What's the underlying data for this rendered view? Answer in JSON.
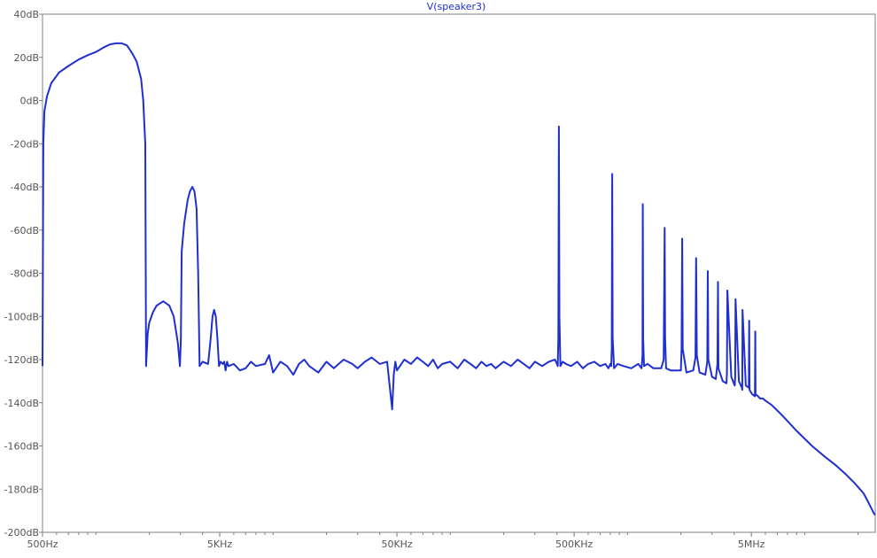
{
  "chart_data": {
    "type": "line",
    "title": "V(speaker3)",
    "xlabel": "",
    "ylabel": "",
    "x_scale": "log",
    "xlim": [
      500,
      25000000
    ],
    "ylim": [
      -200,
      40
    ],
    "grid": false,
    "x_ticks": [
      {
        "value": 500,
        "label": "500Hz"
      },
      {
        "value": 5000,
        "label": "5KHz"
      },
      {
        "value": 50000,
        "label": "50KHz"
      },
      {
        "value": 500000,
        "label": "500KHz"
      },
      {
        "value": 5000000,
        "label": "5MHz"
      }
    ],
    "y_ticks": [
      {
        "value": 40,
        "label": "40dB"
      },
      {
        "value": 20,
        "label": "20dB"
      },
      {
        "value": 0,
        "label": "0dB"
      },
      {
        "value": -20,
        "label": "-20dB"
      },
      {
        "value": -40,
        "label": "-40dB"
      },
      {
        "value": -60,
        "label": "-60dB"
      },
      {
        "value": -80,
        "label": "-80dB"
      },
      {
        "value": -100,
        "label": "-100dB"
      },
      {
        "value": -120,
        "label": "-120dB"
      },
      {
        "value": -140,
        "label": "-140dB"
      },
      {
        "value": -160,
        "label": "-160dB"
      },
      {
        "value": -180,
        "label": "-180dB"
      },
      {
        "value": -200,
        "label": "-200dB"
      }
    ],
    "line_color": "#1f2fd0",
    "series": [
      {
        "values_note_free": true,
        "x": [
          500,
          505,
          512,
          530,
          560,
          620,
          700,
          800,
          900,
          1000,
          1050,
          1100,
          1200,
          1300,
          1400,
          1500,
          1600,
          1700,
          1800,
          1850,
          1900,
          1920,
          1960,
          2000,
          2100,
          2200,
          2400,
          2600,
          2750,
          2900,
          2980,
          3020,
          3050,
          3150,
          3300,
          3400,
          3500,
          3600,
          3700,
          3780,
          3850,
          4000,
          4300,
          4450,
          4550,
          4650,
          4750,
          4850,
          4950,
          5050,
          5200,
          5300,
          5400,
          5500,
          5600,
          6000,
          6500,
          7000,
          7500,
          8000,
          9000,
          9500,
          10000,
          11000,
          12000,
          13000,
          14000,
          15000,
          16000,
          18000,
          20000,
          22000,
          25000,
          28000,
          30000,
          33000,
          36000,
          40000,
          44000,
          47000,
          48000,
          49000,
          50000,
          55000,
          60000,
          65000,
          70000,
          75000,
          80000,
          85000,
          90000,
          100000,
          110000,
          120000,
          130000,
          140000,
          150000,
          160000,
          170000,
          180000,
          200000,
          220000,
          240000,
          260000,
          280000,
          300000,
          330000,
          360000,
          390000,
          400000,
          404000,
          407000,
          410000,
          413000,
          418000,
          430000,
          450000,
          480000,
          520000,
          560000,
          600000,
          650000,
          700000,
          750000,
          780000,
          800000,
          810000,
          815000,
          820000,
          825000,
          840000,
          880000,
          950000,
          1050000,
          1150000,
          1200000,
          1215000,
          1220000,
          1225000,
          1240000,
          1300000,
          1400000,
          1550000,
          1600000,
          1620000,
          1630000,
          1650000,
          1750000,
          1900000,
          2000000,
          2020000,
          2035000,
          2050000,
          2150000,
          2350000,
          2420000,
          2440000,
          2460000,
          2550000,
          2750000,
          2820000,
          2840000,
          2860000,
          3000000,
          3150000,
          3220000,
          3240000,
          3260000,
          3450000,
          3620000,
          3640000,
          3660000,
          3850000,
          4030000,
          4050000,
          4070000,
          4250000,
          4420000,
          4440000,
          4460000,
          4650000,
          4840000,
          4860000,
          4880000,
          5050000,
          5240000,
          5260000,
          5280000,
          5450000,
          5600000,
          5800000,
          6000000,
          6500000,
          7500000,
          9000000,
          11000000,
          13000000,
          15000000,
          17000000,
          19000000,
          20500000,
          21500000,
          22500000,
          23500000,
          24500000,
          25000000
        ],
        "y": [
          -123,
          -20,
          -5,
          2,
          8,
          13,
          16,
          19,
          21,
          22.5,
          23.5,
          24.5,
          26,
          26.5,
          26.5,
          25.5,
          22,
          18,
          10,
          0,
          -20,
          -123,
          -108,
          -103,
          -98,
          -95,
          -93,
          -95,
          -100,
          -112,
          -123,
          -110,
          -70,
          -57,
          -46,
          -42,
          -40,
          -42,
          -50,
          -80,
          -123,
          -121,
          -122,
          -110,
          -100,
          -97,
          -100,
          -110,
          -123,
          -121,
          -122,
          -121,
          -125,
          -121,
          -123,
          -122,
          -125,
          -124,
          -121,
          -123,
          -122,
          -118,
          -126,
          -121,
          -123,
          -127,
          -122,
          -120,
          -123,
          -126,
          -121,
          -124,
          -120,
          -122,
          -124,
          -121,
          -119,
          -122,
          -121,
          -143,
          -127,
          -121,
          -125,
          -120,
          -122,
          -119,
          -121,
          -123,
          -120,
          -124,
          -122,
          -121,
          -124,
          -120,
          -122,
          -124,
          -121,
          -123,
          -122,
          -124,
          -121,
          -123,
          -120,
          -122,
          -124,
          -121,
          -123,
          -121,
          -120,
          -122,
          -123,
          -110,
          -12,
          -100,
          -123,
          -121,
          -122,
          -123,
          -121,
          -124,
          -122,
          -121,
          -123,
          -122,
          -124,
          -122,
          -123,
          -115,
          -34,
          -110,
          -124,
          -122,
          -123,
          -124,
          -122,
          -124,
          -118,
          -48,
          -110,
          -123,
          -122,
          -124,
          -124,
          -120,
          -59,
          -110,
          -124,
          -125,
          -125,
          -125,
          -115,
          -64,
          -115,
          -126,
          -125,
          -119,
          -73,
          -118,
          -126,
          -127,
          -121,
          -79,
          -120,
          -128,
          -129,
          -122,
          -84,
          -124,
          -130,
          -131,
          -126,
          -88,
          -128,
          -132,
          -128,
          -92,
          -130,
          -133,
          -134,
          -97,
          -132,
          -133,
          -102,
          -134,
          -136,
          -137,
          -107,
          -136,
          -137,
          -138,
          -138,
          -139,
          -141,
          -146,
          -153,
          -160,
          -165,
          -169,
          -173,
          -177,
          -180,
          -182,
          -185,
          -188,
          -191,
          -192
        ]
      }
    ]
  }
}
